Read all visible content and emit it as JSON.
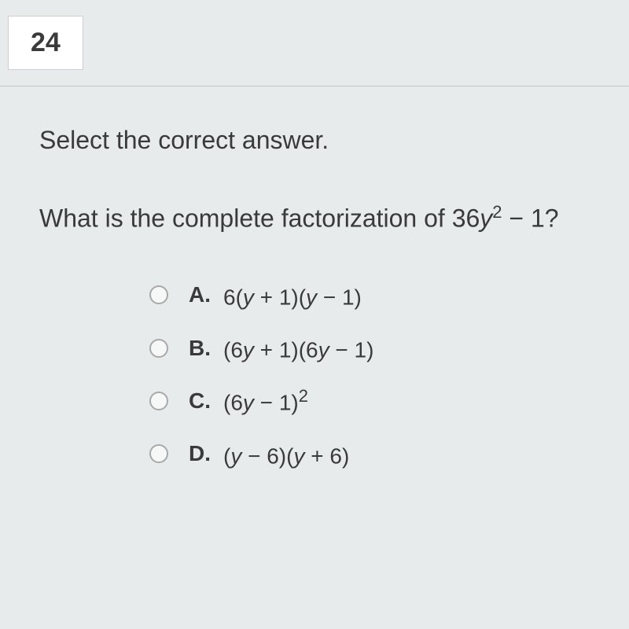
{
  "header": {
    "question_number": "24"
  },
  "instruction": "Select the correct answer.",
  "question": {
    "pre": "What is the complete factorization of 36",
    "var1": "y",
    "sup1": "2",
    "post": " − 1?"
  },
  "options": [
    {
      "letter": "A.",
      "pre": "6(",
      "v1": "y",
      "mid1": " + 1)(",
      "v2": "y",
      "mid2": " − 1)",
      "sup": ""
    },
    {
      "letter": "B.",
      "pre": "(6",
      "v1": "y",
      "mid1": " + 1)(6",
      "v2": "y",
      "mid2": " − 1)",
      "sup": ""
    },
    {
      "letter": "C.",
      "pre": "(6",
      "v1": "y",
      "mid1": " − 1)",
      "v2": "",
      "mid2": "",
      "sup": "2"
    },
    {
      "letter": "D.",
      "pre": "(",
      "v1": "y",
      "mid1": " − 6)(",
      "v2": "y",
      "mid2": " + 6)",
      "sup": ""
    }
  ],
  "style": {
    "bg_color": "#e8ebec",
    "card_bg": "#ffffff",
    "border_color": "#cfcfcf",
    "text_color": "#3a3a3a",
    "radio_border": "#a9a9a9"
  }
}
